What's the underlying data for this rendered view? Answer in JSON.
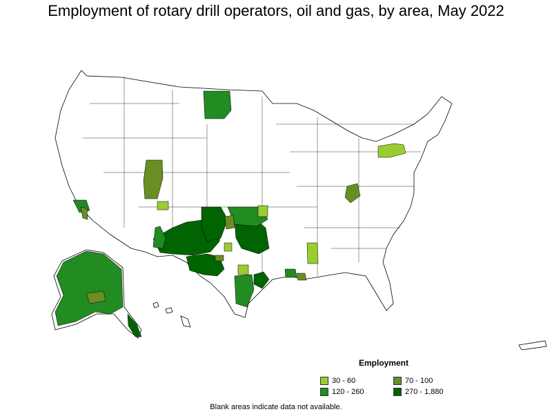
{
  "title": "Employment of rotary drill operators, oil and gas, by area, May 2022",
  "legend": {
    "title": "Employment",
    "items": [
      {
        "label": "30 - 60",
        "color": "#9acd32"
      },
      {
        "label": "70 - 100",
        "color": "#6b8e23"
      },
      {
        "label": "120 - 260",
        "color": "#228b22"
      },
      {
        "label": "270 - 1,880",
        "color": "#006400"
      }
    ]
  },
  "note": "Blank areas indicate data not available.",
  "colors": {
    "border": "#000000",
    "blank": "#ffffff"
  }
}
